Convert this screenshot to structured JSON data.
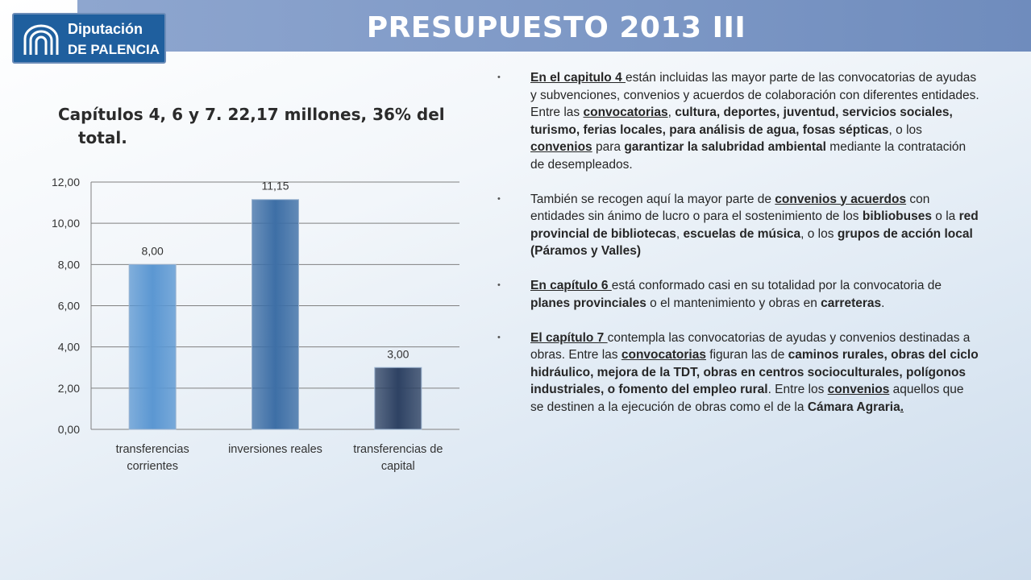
{
  "header": {
    "title": "PRESUPUESTO 2013 III",
    "logo_line1": "Diputación",
    "logo_line2": "DE PALENCIA"
  },
  "subtitle": "Capítulos 4, 6 y 7.  22,17 millones, 36% del total.",
  "chart_data": {
    "type": "bar",
    "categories": [
      [
        "transferencias",
        "corrientes"
      ],
      [
        "inversiones reales"
      ],
      [
        "transferencias de",
        "capital"
      ]
    ],
    "values": [
      8.0,
      11.15,
      3.0
    ],
    "value_labels": [
      "8,00",
      "11,15",
      "3,00"
    ],
    "colors": [
      "#5b97d2",
      "#3e6fa6",
      "#2e4263"
    ],
    "ylim": [
      0,
      12
    ],
    "yticks": [
      "0,00",
      "2,00",
      "4,00",
      "6,00",
      "8,00",
      "10,00",
      "12,00"
    ],
    "grid": true,
    "legend": "none"
  },
  "bullets": [
    [
      {
        "t": "En el capitulo 4 ",
        "b": true,
        "u": true
      },
      {
        "t": "están incluidas las mayor parte de las convocatorias de ayudas y subvenciones, convenios y acuerdos de colaboración con diferentes entidades. Entre las "
      },
      {
        "t": "convocatorias",
        "b": true,
        "u": true
      },
      {
        "t": ", "
      },
      {
        "t": "cultura, deportes, juventud, servicios sociales, turismo, ferias locales, para análisis de agua, fosas sépticas",
        "b": true
      },
      {
        "t": ", o los "
      },
      {
        "t": "convenios",
        "b": true,
        "u": true
      },
      {
        "t": " para "
      },
      {
        "t": "garantizar la salubridad ambiental",
        "b": true
      },
      {
        "t": " mediante la contratación de desempleados."
      }
    ],
    [
      {
        "t": "También se recogen aquí la mayor parte de "
      },
      {
        "t": "convenios y acuerdos",
        "b": true,
        "u": true
      },
      {
        "t": " con entidades sin ánimo de lucro o para el sostenimiento de los "
      },
      {
        "t": "bibliobuses",
        "b": true
      },
      {
        "t": " o la "
      },
      {
        "t": "red provincial de bibliotecas",
        "b": true
      },
      {
        "t": ", "
      },
      {
        "t": "escuelas de música",
        "b": true
      },
      {
        "t": ", o los "
      },
      {
        "t": "grupos de acción local (Páramos y Valles)",
        "b": true
      }
    ],
    [
      {
        "t": "En capítulo 6 ",
        "b": true,
        "u": true
      },
      {
        "t": "está conformado casi en su totalidad por la convocatoria de "
      },
      {
        "t": "planes provinciales",
        "b": true
      },
      {
        "t": " o el mantenimiento y obras en "
      },
      {
        "t": "carreteras",
        "b": true
      },
      {
        "t": "."
      }
    ],
    [
      {
        "t": "El capítulo 7 ",
        "b": true,
        "u": true
      },
      {
        "t": "contempla las convocatorias de ayudas y convenios destinadas a obras. Entre las  "
      },
      {
        "t": "convocatorias",
        "b": true,
        "u": true
      },
      {
        "t": " figuran las de "
      },
      {
        "t": "caminos rurales, obras del ciclo hidráulico, mejora de la TDT, obras en centros socioculturales, polígonos industriales, o fomento del empleo rural",
        "b": true
      },
      {
        "t": ". Entre los "
      },
      {
        "t": "convenios",
        "b": true,
        "u": true
      },
      {
        "t": " aquellos que se destinen a la ejecución de obras como el de la "
      },
      {
        "t": "Cámara Agraria",
        "b": true
      },
      {
        "t": ".",
        "b": true,
        "u": true
      }
    ]
  ]
}
